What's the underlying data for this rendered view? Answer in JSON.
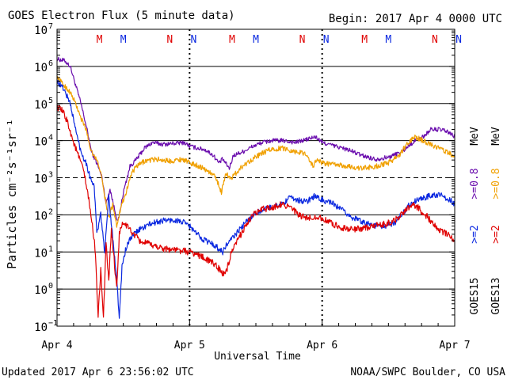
{
  "header": {
    "title": "GOES Electron Flux (5 minute data)",
    "begin": "Begin: 2017 Apr 4 0000 UTC"
  },
  "footer": {
    "updated": "Updated 2017 Apr  6 23:56:02 UTC",
    "credit": "NOAA/SWPC Boulder, CO USA"
  },
  "colors": {
    "goes15_ge08": "#6a0dad",
    "goes13_ge08": "#f0a000",
    "goes15_ge2": "#0a28e0",
    "goes13_ge2": "#e00000"
  },
  "right_legend": {
    "goes15": "GOES15",
    "goes13": "GOES13",
    "goes15_ge2": ">=2",
    "goes15_ge08": ">=0.8",
    "goes13_ge2": ">=2",
    "goes13_ge08": ">=0.8",
    "mev": "MeV"
  },
  "marker_labels": [
    {
      "text": "M",
      "day": 0.32,
      "color": "#e00000"
    },
    {
      "text": "M",
      "day": 0.5,
      "color": "#0a28e0"
    },
    {
      "text": "N",
      "day": 0.85,
      "color": "#e00000"
    },
    {
      "text": "N",
      "day": 1.03,
      "color": "#0a28e0"
    },
    {
      "text": "M",
      "day": 1.32,
      "color": "#e00000"
    },
    {
      "text": "M",
      "day": 1.5,
      "color": "#0a28e0"
    },
    {
      "text": "N",
      "day": 1.85,
      "color": "#e00000"
    },
    {
      "text": "N",
      "day": 2.03,
      "color": "#0a28e0"
    },
    {
      "text": "M",
      "day": 2.32,
      "color": "#e00000"
    },
    {
      "text": "M",
      "day": 2.5,
      "color": "#0a28e0"
    },
    {
      "text": "N",
      "day": 2.85,
      "color": "#e00000"
    },
    {
      "text": "N",
      "day": 3.03,
      "color": "#0a28e0"
    }
  ],
  "chart_data": {
    "type": "line",
    "xlabel": "Universal Time",
    "ylabel": "Particles cm⁻²s⁻¹sr⁻¹",
    "xlim": [
      0,
      3
    ],
    "ylim_exp": [
      -1,
      7
    ],
    "y_scale": "log",
    "x_ticks": [
      {
        "v": 0,
        "label": "Apr 4"
      },
      {
        "v": 1,
        "label": "Apr 5"
      },
      {
        "v": 2,
        "label": "Apr 6"
      },
      {
        "v": 3,
        "label": "Apr 7"
      }
    ],
    "y_tick_exps": [
      -1,
      0,
      1,
      2,
      3,
      4,
      5,
      6,
      7
    ],
    "y_tick_base": "10",
    "day_boundary_dotted": true,
    "dashed_level": 3,
    "series": [
      {
        "name": "GOES15 >=0.8 MeV",
        "color": "#6a0dad",
        "noise": 0.06,
        "points": [
          [
            0,
            6.2
          ],
          [
            0.06,
            6.15
          ],
          [
            0.1,
            6.0
          ],
          [
            0.14,
            5.5
          ],
          [
            0.18,
            5.0
          ],
          [
            0.22,
            4.4
          ],
          [
            0.26,
            3.7
          ],
          [
            0.3,
            3.4
          ],
          [
            0.34,
            3.0
          ],
          [
            0.37,
            2.3
          ],
          [
            0.4,
            2.7
          ],
          [
            0.43,
            2.2
          ],
          [
            0.46,
            1.8
          ],
          [
            0.5,
            2.6
          ],
          [
            0.55,
            3.3
          ],
          [
            0.6,
            3.5
          ],
          [
            0.66,
            3.8
          ],
          [
            0.72,
            3.95
          ],
          [
            0.8,
            3.9
          ],
          [
            0.9,
            3.93
          ],
          [
            0.96,
            3.95
          ],
          [
            1.0,
            3.85
          ],
          [
            1.06,
            3.8
          ],
          [
            1.12,
            3.75
          ],
          [
            1.18,
            3.6
          ],
          [
            1.22,
            3.4
          ],
          [
            1.25,
            3.5
          ],
          [
            1.3,
            3.25
          ],
          [
            1.33,
            3.6
          ],
          [
            1.4,
            3.7
          ],
          [
            1.48,
            3.85
          ],
          [
            1.55,
            3.95
          ],
          [
            1.62,
            4.0
          ],
          [
            1.7,
            4.0
          ],
          [
            1.8,
            3.95
          ],
          [
            1.9,
            4.05
          ],
          [
            1.95,
            4.1
          ],
          [
            2.0,
            3.95
          ],
          [
            2.1,
            3.85
          ],
          [
            2.2,
            3.75
          ],
          [
            2.3,
            3.6
          ],
          [
            2.4,
            3.5
          ],
          [
            2.5,
            3.55
          ],
          [
            2.6,
            3.7
          ],
          [
            2.7,
            4.0
          ],
          [
            2.76,
            4.1
          ],
          [
            2.82,
            4.3
          ],
          [
            2.88,
            4.3
          ],
          [
            2.94,
            4.25
          ],
          [
            3.0,
            4.1
          ]
        ]
      },
      {
        "name": "GOES13 >=0.8 MeV",
        "color": "#f0a000",
        "noise": 0.07,
        "points": [
          [
            0,
            5.7
          ],
          [
            0.05,
            5.5
          ],
          [
            0.1,
            5.3
          ],
          [
            0.14,
            5.0
          ],
          [
            0.18,
            4.6
          ],
          [
            0.22,
            4.3
          ],
          [
            0.25,
            3.8
          ],
          [
            0.28,
            3.6
          ],
          [
            0.32,
            3.3
          ],
          [
            0.36,
            2.5
          ],
          [
            0.39,
            1.9
          ],
          [
            0.42,
            2.3
          ],
          [
            0.45,
            1.7
          ],
          [
            0.48,
            2.2
          ],
          [
            0.52,
            2.6
          ],
          [
            0.56,
            3.1
          ],
          [
            0.6,
            3.3
          ],
          [
            0.66,
            3.45
          ],
          [
            0.75,
            3.5
          ],
          [
            0.85,
            3.45
          ],
          [
            0.95,
            3.5
          ],
          [
            1.0,
            3.4
          ],
          [
            1.08,
            3.3
          ],
          [
            1.15,
            3.15
          ],
          [
            1.2,
            3.0
          ],
          [
            1.24,
            2.6
          ],
          [
            1.27,
            3.1
          ],
          [
            1.32,
            3.0
          ],
          [
            1.38,
            3.25
          ],
          [
            1.45,
            3.45
          ],
          [
            1.52,
            3.6
          ],
          [
            1.6,
            3.75
          ],
          [
            1.7,
            3.8
          ],
          [
            1.8,
            3.7
          ],
          [
            1.88,
            3.65
          ],
          [
            1.93,
            3.3
          ],
          [
            1.96,
            3.5
          ],
          [
            2.0,
            3.4
          ],
          [
            2.1,
            3.35
          ],
          [
            2.2,
            3.3
          ],
          [
            2.3,
            3.25
          ],
          [
            2.4,
            3.3
          ],
          [
            2.5,
            3.4
          ],
          [
            2.58,
            3.6
          ],
          [
            2.64,
            3.9
          ],
          [
            2.7,
            4.1
          ],
          [
            2.76,
            4.0
          ],
          [
            2.82,
            3.9
          ],
          [
            2.88,
            3.8
          ],
          [
            2.94,
            3.7
          ],
          [
            3.0,
            3.55
          ]
        ]
      },
      {
        "name": "GOES15 >=2 MeV",
        "color": "#0a28e0",
        "noise": 0.08,
        "points": [
          [
            0,
            5.6
          ],
          [
            0.05,
            5.4
          ],
          [
            0.1,
            5.0
          ],
          [
            0.14,
            4.3
          ],
          [
            0.18,
            3.7
          ],
          [
            0.22,
            3.4
          ],
          [
            0.25,
            3.0
          ],
          [
            0.28,
            2.8
          ],
          [
            0.3,
            1.5
          ],
          [
            0.33,
            2.0
          ],
          [
            0.36,
            1.0
          ],
          [
            0.39,
            2.5
          ],
          [
            0.42,
            1.4
          ],
          [
            0.45,
            0.3
          ],
          [
            0.47,
            -0.8
          ],
          [
            0.49,
            0.6
          ],
          [
            0.52,
            1.1
          ],
          [
            0.56,
            1.4
          ],
          [
            0.62,
            1.6
          ],
          [
            0.7,
            1.75
          ],
          [
            0.8,
            1.85
          ],
          [
            0.9,
            1.85
          ],
          [
            0.95,
            1.8
          ],
          [
            1.0,
            1.7
          ],
          [
            1.05,
            1.5
          ],
          [
            1.1,
            1.35
          ],
          [
            1.18,
            1.2
          ],
          [
            1.25,
            1.0
          ],
          [
            1.28,
            1.2
          ],
          [
            1.33,
            1.4
          ],
          [
            1.4,
            1.7
          ],
          [
            1.48,
            2.0
          ],
          [
            1.55,
            2.15
          ],
          [
            1.62,
            2.2
          ],
          [
            1.7,
            2.3
          ],
          [
            1.75,
            2.45
          ],
          [
            1.82,
            2.4
          ],
          [
            1.88,
            2.35
          ],
          [
            1.94,
            2.5
          ],
          [
            2.0,
            2.4
          ],
          [
            2.08,
            2.3
          ],
          [
            2.16,
            2.1
          ],
          [
            2.24,
            1.9
          ],
          [
            2.32,
            1.8
          ],
          [
            2.4,
            1.7
          ],
          [
            2.48,
            1.7
          ],
          [
            2.55,
            1.8
          ],
          [
            2.6,
            2.0
          ],
          [
            2.66,
            2.3
          ],
          [
            2.72,
            2.4
          ],
          [
            2.8,
            2.5
          ],
          [
            2.88,
            2.55
          ],
          [
            2.94,
            2.45
          ],
          [
            3.0,
            2.3
          ]
        ]
      },
      {
        "name": "GOES13 >=2 MeV",
        "color": "#e00000",
        "noise": 0.09,
        "points": [
          [
            0,
            4.9
          ],
          [
            0.04,
            4.8
          ],
          [
            0.08,
            4.5
          ],
          [
            0.12,
            4.0
          ],
          [
            0.16,
            3.6
          ],
          [
            0.2,
            3.2
          ],
          [
            0.24,
            2.4
          ],
          [
            0.27,
            1.6
          ],
          [
            0.29,
            1.0
          ],
          [
            0.31,
            -0.8
          ],
          [
            0.33,
            0.6
          ],
          [
            0.35,
            -0.8
          ],
          [
            0.37,
            1.2
          ],
          [
            0.39,
            0.2
          ],
          [
            0.41,
            1.6
          ],
          [
            0.43,
            0.8
          ],
          [
            0.45,
            0.0
          ],
          [
            0.47,
            1.5
          ],
          [
            0.5,
            1.8
          ],
          [
            0.55,
            1.6
          ],
          [
            0.62,
            1.3
          ],
          [
            0.7,
            1.2
          ],
          [
            0.8,
            1.1
          ],
          [
            0.9,
            1.05
          ],
          [
            1.0,
            1.0
          ],
          [
            1.08,
            0.9
          ],
          [
            1.15,
            0.75
          ],
          [
            1.2,
            0.65
          ],
          [
            1.25,
            0.4
          ],
          [
            1.28,
            0.5
          ],
          [
            1.31,
            0.9
          ],
          [
            1.36,
            1.3
          ],
          [
            1.42,
            1.7
          ],
          [
            1.48,
            2.0
          ],
          [
            1.55,
            2.15
          ],
          [
            1.62,
            2.2
          ],
          [
            1.7,
            2.3
          ],
          [
            1.76,
            2.2
          ],
          [
            1.82,
            2.0
          ],
          [
            1.88,
            1.9
          ],
          [
            1.95,
            1.95
          ],
          [
            2.0,
            1.9
          ],
          [
            2.08,
            1.75
          ],
          [
            2.16,
            1.65
          ],
          [
            2.24,
            1.6
          ],
          [
            2.32,
            1.65
          ],
          [
            2.4,
            1.7
          ],
          [
            2.48,
            1.75
          ],
          [
            2.55,
            1.85
          ],
          [
            2.62,
            2.1
          ],
          [
            2.68,
            2.3
          ],
          [
            2.72,
            2.2
          ],
          [
            2.78,
            2.0
          ],
          [
            2.84,
            1.75
          ],
          [
            2.9,
            1.55
          ],
          [
            2.96,
            1.45
          ],
          [
            3.0,
            1.3
          ]
        ]
      }
    ]
  }
}
